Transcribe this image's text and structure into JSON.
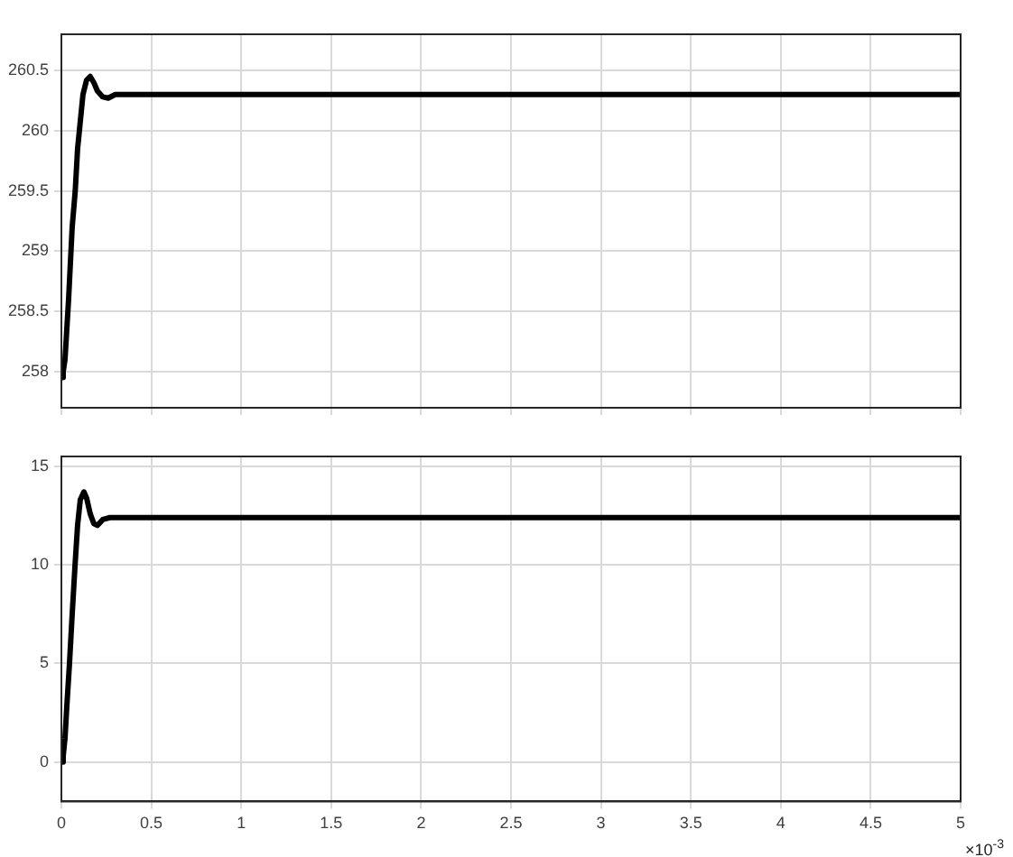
{
  "chart_data": [
    {
      "type": "line",
      "x": [
        0,
        0.01,
        0.02,
        0.04,
        0.06,
        0.077,
        0.09,
        0.1,
        0.12,
        0.14,
        0.16,
        0.18,
        0.2,
        0.23,
        0.26,
        0.3,
        0.4,
        0.5,
        1,
        2,
        3,
        4,
        5
      ],
      "series": [
        {
          "color": "#000000",
          "values": [
            257.95,
            258.0,
            258.1,
            258.6,
            259.2,
            259.5,
            259.85,
            260.0,
            260.3,
            260.42,
            260.45,
            260.4,
            260.33,
            260.28,
            260.27,
            260.3,
            260.3,
            260.3,
            260.3,
            260.3,
            260.3,
            260.3,
            260.3
          ]
        }
      ],
      "xlim": [
        0,
        5
      ],
      "xticks": [
        0,
        0.5,
        1,
        1.5,
        2,
        2.5,
        3,
        3.5,
        4,
        4.5,
        5
      ],
      "ylim": [
        257.7,
        260.8
      ],
      "yticks": [
        258,
        258.5,
        259,
        259.5,
        260,
        260.5
      ],
      "grid": true,
      "legend": false,
      "tick_labels": "y",
      "marker": "none",
      "line_style": "solid"
    },
    {
      "type": "line",
      "x": [
        0,
        0.01,
        0.02,
        0.03,
        0.045,
        0.06,
        0.076,
        0.09,
        0.105,
        0.125,
        0.14,
        0.16,
        0.18,
        0.2,
        0.23,
        0.27,
        0.3,
        0.5,
        1,
        2,
        3,
        4,
        5
      ],
      "series": [
        {
          "color": "#000000",
          "values": [
            0,
            0.3,
            1.2,
            2.8,
            5,
            7.5,
            10,
            12,
            13.3,
            13.7,
            13.4,
            12.6,
            12.1,
            12.0,
            12.3,
            12.4,
            12.4,
            12.4,
            12.4,
            12.4,
            12.4,
            12.4,
            12.4
          ]
        }
      ],
      "xlim": [
        0,
        5
      ],
      "xticks": [
        0,
        0.5,
        1,
        1.5,
        2,
        2.5,
        3,
        3.5,
        4,
        4.5,
        5
      ],
      "ylim": [
        -2,
        15.5
      ],
      "yticks": [
        0,
        5,
        10,
        15
      ],
      "grid": true,
      "legend": false,
      "marker": "none",
      "line_style": "solid",
      "annotations": [
        "×10$^{-3}$"
      ]
    }
  ]
}
